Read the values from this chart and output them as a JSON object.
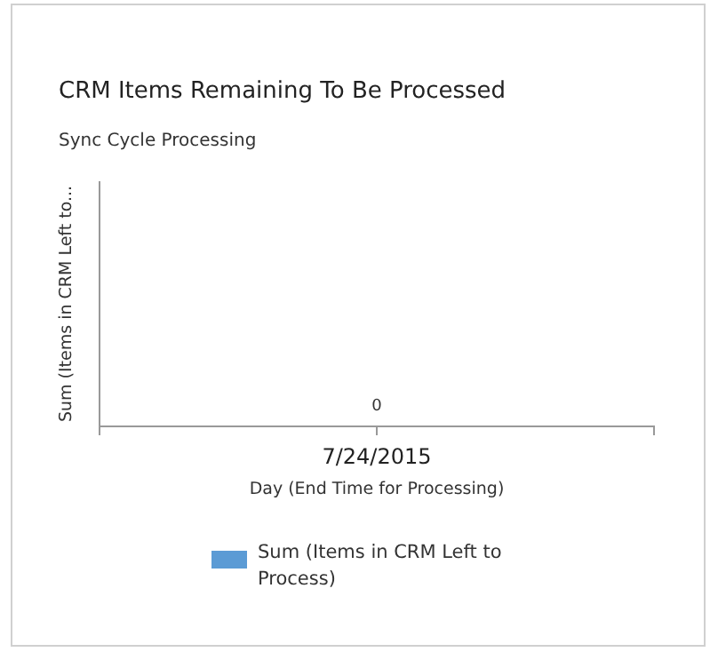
{
  "chart_data": {
    "type": "other",
    "title": "CRM Items Remaining To Be Processed",
    "subtitle": "Sync Cycle Processing",
    "xlabel": "Day (End Time for Processing)",
    "ylabel": "Sum (Items in CRM Left to...",
    "categories": [
      "7/24/2015"
    ],
    "series": [
      {
        "name": "Sum (Items in CRM Left to Process)",
        "color": "#5b9bd5",
        "values": [
          0
        ]
      }
    ],
    "data_labels": true,
    "legend": "bottom"
  }
}
